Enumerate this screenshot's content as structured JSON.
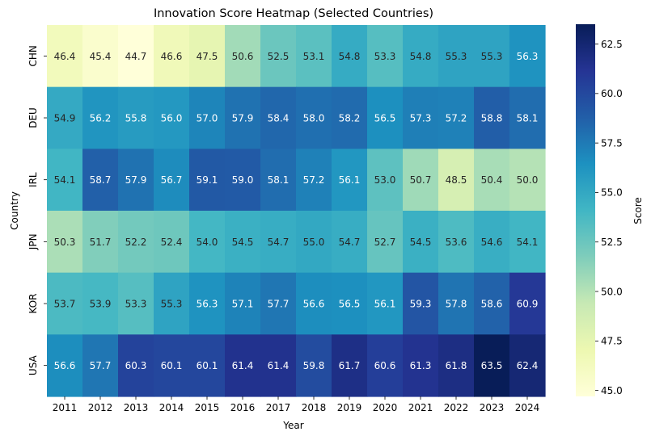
{
  "chart_data": {
    "type": "heatmap",
    "title": "Innovation Score Heatmap (Selected Countries)",
    "xlabel": "Year",
    "ylabel": "Country",
    "colorbar_label": "Score",
    "colormap": "YlGnBu",
    "vmin": 44.7,
    "vmax": 63.5,
    "colorbar_ticks": [
      "45.0",
      "47.5",
      "50.0",
      "52.5",
      "55.0",
      "57.5",
      "60.0",
      "62.5"
    ],
    "x": [
      "2011",
      "2012",
      "2013",
      "2014",
      "2015",
      "2016",
      "2017",
      "2018",
      "2019",
      "2020",
      "2021",
      "2022",
      "2023",
      "2024"
    ],
    "y": [
      "CHN",
      "DEU",
      "IRL",
      "JPN",
      "KOR",
      "USA"
    ],
    "values": [
      [
        46.4,
        45.4,
        44.7,
        46.6,
        47.5,
        50.6,
        52.5,
        53.1,
        54.8,
        53.3,
        54.8,
        55.3,
        55.3,
        56.3
      ],
      [
        54.9,
        56.2,
        55.8,
        56.0,
        57.0,
        57.9,
        58.4,
        58.0,
        58.2,
        56.5,
        57.3,
        57.2,
        58.8,
        58.1
      ],
      [
        54.1,
        58.7,
        57.9,
        56.7,
        59.1,
        59.0,
        58.1,
        57.2,
        56.1,
        53.0,
        50.7,
        48.5,
        50.4,
        50.0
      ],
      [
        50.3,
        51.7,
        52.2,
        52.4,
        54.0,
        54.5,
        54.7,
        55.0,
        54.7,
        52.7,
        54.5,
        53.6,
        54.6,
        54.1
      ],
      [
        53.7,
        53.9,
        53.3,
        55.3,
        56.3,
        57.1,
        57.7,
        56.6,
        56.5,
        56.1,
        59.3,
        57.8,
        58.6,
        60.9
      ],
      [
        56.6,
        57.7,
        60.3,
        60.1,
        60.1,
        61.4,
        61.4,
        59.8,
        61.7,
        60.6,
        61.3,
        61.8,
        63.5,
        62.4
      ]
    ]
  }
}
